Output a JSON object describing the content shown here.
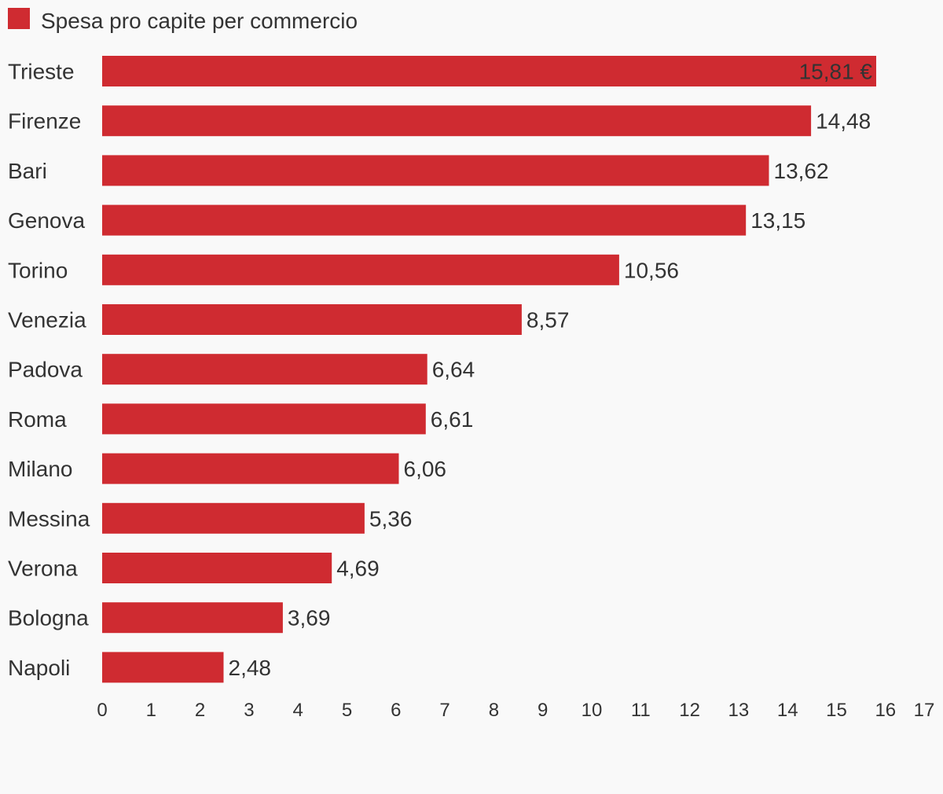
{
  "chart_data": {
    "type": "bar",
    "orientation": "horizontal",
    "legend": {
      "label": "Spesa pro capite per commercio",
      "placement": "top-left"
    },
    "categories": [
      "Trieste",
      "Firenze",
      "Bari",
      "Genova",
      "Torino",
      "Venezia",
      "Padova",
      "Roma",
      "Milano",
      "Messina",
      "Verona",
      "Bologna",
      "Napoli"
    ],
    "series": [
      {
        "name": "Spesa pro capite per commercio",
        "values": [
          15.81,
          14.48,
          13.62,
          13.15,
          10.56,
          8.57,
          6.64,
          6.61,
          6.06,
          5.36,
          4.69,
          3.69,
          2.48
        ]
      }
    ],
    "value_labels": [
      "15,81 €",
      "14,48",
      "13,62",
      "13,15",
      "10,56",
      "8,57",
      "6,64",
      "6,61",
      "6,06",
      "5,36",
      "4,69",
      "3,69",
      "2,48"
    ],
    "x_ticks": [
      "0",
      "1",
      "2",
      "3",
      "4",
      "5",
      "6",
      "7",
      "8",
      "9",
      "10",
      "11",
      "12",
      "13",
      "14",
      "15",
      "16",
      "17"
    ],
    "xlim": [
      0,
      17
    ],
    "grid": false,
    "colors": {
      "bar": "#cf2b31",
      "text": "#333333",
      "background": "#f9f9f9"
    }
  }
}
